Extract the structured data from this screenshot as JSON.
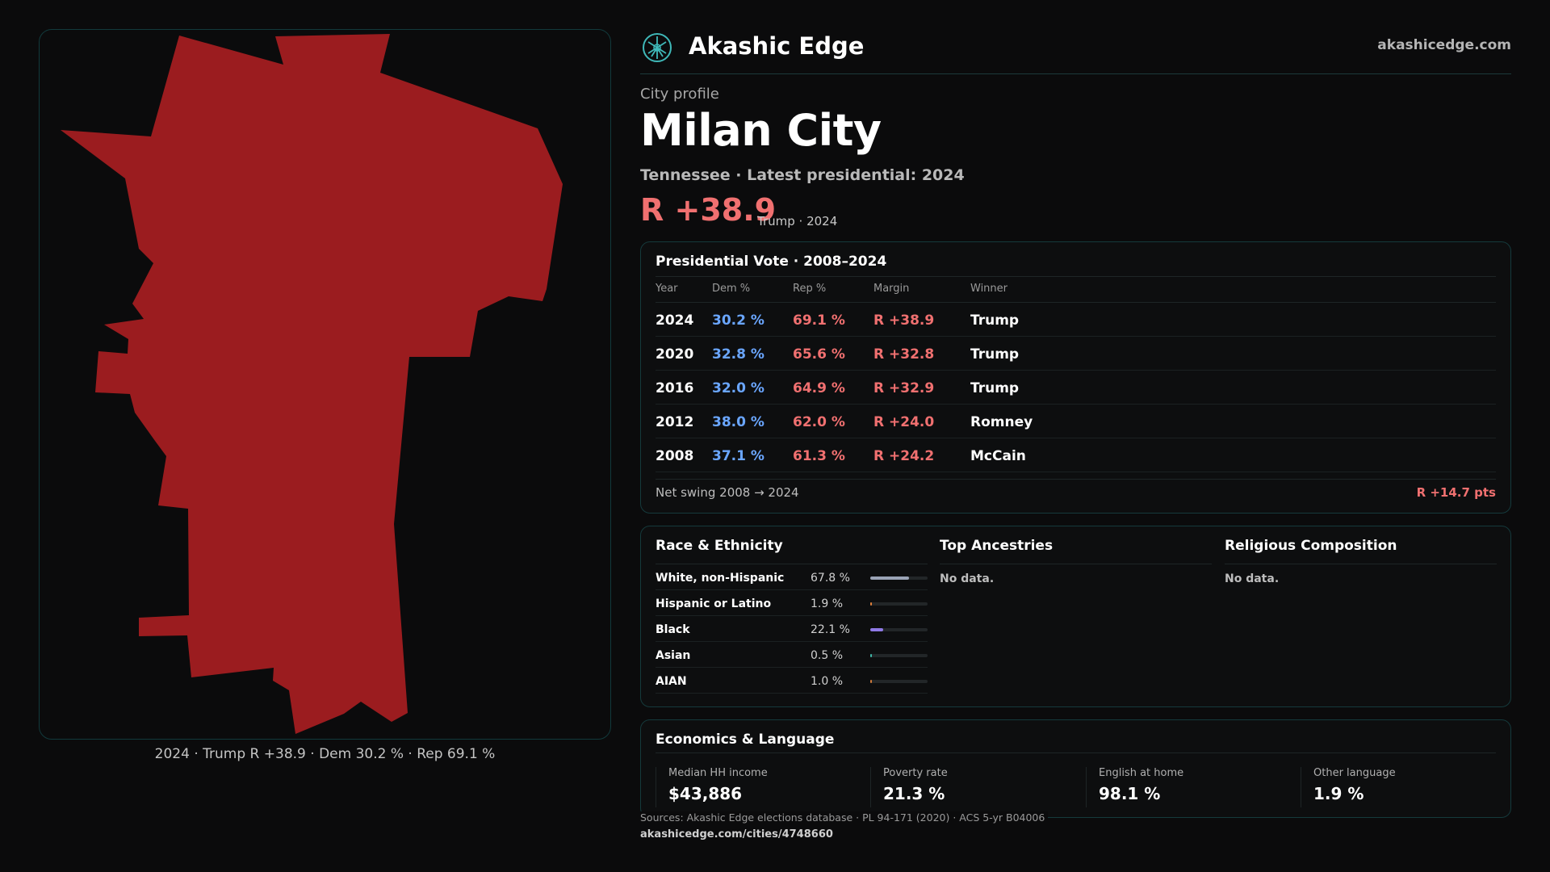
{
  "brand": {
    "name": "Akashic Edge",
    "url": "akashicedge.com"
  },
  "profile": {
    "eyebrow": "City profile",
    "city": "Milan City",
    "subtitle": "Tennessee · Latest presidential: 2024",
    "margin": "R +38.9",
    "margin_note": "Trump · 2024"
  },
  "map": {
    "caption": "2024 · Trump R +38.9 · Dem 30.2 % · Rep 69.1 %",
    "fill_color": "#9b1c1f"
  },
  "vote": {
    "title": "Presidential Vote · 2008–2024",
    "headers": {
      "year": "Year",
      "dem": "Dem %",
      "rep": "Rep %",
      "margin": "Margin",
      "winner": "Winner"
    },
    "rows": [
      {
        "year": "2024",
        "dem": "30.2 %",
        "rep": "69.1 %",
        "margin": "R +38.9",
        "winner": "Trump"
      },
      {
        "year": "2020",
        "dem": "32.8 %",
        "rep": "65.6 %",
        "margin": "R +32.8",
        "winner": "Trump"
      },
      {
        "year": "2016",
        "dem": "32.0 %",
        "rep": "64.9 %",
        "margin": "R +32.9",
        "winner": "Trump"
      },
      {
        "year": "2012",
        "dem": "38.0 %",
        "rep": "62.0 %",
        "margin": "R +24.0",
        "winner": "Romney"
      },
      {
        "year": "2008",
        "dem": "37.1 %",
        "rep": "61.3 %",
        "margin": "R +24.2",
        "winner": "McCain"
      }
    ],
    "swing_label": "Net swing 2008 → 2024",
    "swing_value": "R +14.7 pts"
  },
  "race": {
    "title": "Race & Ethnicity",
    "rows": [
      {
        "label": "White, non-Hispanic",
        "pct": "67.8 %",
        "share": 0.678,
        "color": "#9aa3b5"
      },
      {
        "label": "Hispanic or Latino",
        "pct": "1.9 %",
        "share": 0.019,
        "color": "#e0803a"
      },
      {
        "label": "Black",
        "pct": "22.1 %",
        "share": 0.221,
        "color": "#8f7ae6"
      },
      {
        "label": "Asian",
        "pct": "0.5 %",
        "share": 0.005,
        "color": "#3fb8a8"
      },
      {
        "label": "AIAN",
        "pct": "1.0 %",
        "share": 0.01,
        "color": "#d07a3a"
      }
    ]
  },
  "ancestries": {
    "title": "Top Ancestries",
    "empty": "No data."
  },
  "religion": {
    "title": "Religious Composition",
    "empty": "No data."
  },
  "economics": {
    "title": "Economics & Language",
    "stats": [
      {
        "label": "Median HH income",
        "value": "$43,886"
      },
      {
        "label": "Poverty rate",
        "value": "21.3 %"
      },
      {
        "label": "English at home",
        "value": "98.1 %"
      },
      {
        "label": "Other language",
        "value": "1.9 %"
      }
    ]
  },
  "footer": {
    "sources": "Sources: Akashic Edge elections database · PL 94-171 (2020) · ACS 5-yr B04006",
    "url": "akashicedge.com/cities/4748660"
  }
}
